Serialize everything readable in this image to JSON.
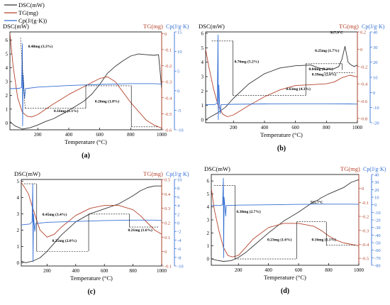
{
  "legend": [
    {
      "label": "DSC(mW)",
      "color": "#333333"
    },
    {
      "label": "TG(mg)",
      "color": "#b5432c"
    },
    {
      "label": "Cp(J/(g·K))",
      "color": "#3570d4"
    }
  ],
  "colors": {
    "dsc": "#333333",
    "tg": "#b5432c",
    "cp": "#3570d4"
  },
  "chart_data": [
    {
      "type": "line",
      "panel_label": "(a)",
      "xlabel": "Temperature (°C)",
      "xlim": [
        20,
        1000
      ],
      "xticks": [
        200,
        400,
        600,
        800,
        1000
      ],
      "axes": {
        "dsc": {
          "title": "DSC(mW)",
          "lim": [
            -0.5,
            6.6
          ],
          "ticks": [
            0,
            1,
            2,
            3,
            4,
            5,
            6
          ]
        },
        "tg": {
          "title": "TG(mg)",
          "lim": [
            -0.6,
            0.01
          ],
          "ticks": [
            -0.6,
            -0.5,
            -0.4,
            -0.3,
            -0.2,
            -0.1,
            0.0
          ]
        },
        "cp": {
          "title": "Cp(J/g·K)",
          "lim": [
            -10,
            15
          ],
          "ticks": [
            -10,
            -5,
            0,
            5,
            10,
            15
          ]
        }
      },
      "series": [
        {
          "axis": "dsc",
          "x": [
            20,
            50,
            100,
            150,
            200,
            250,
            300,
            400,
            500,
            550,
            600,
            650,
            700,
            750,
            800,
            850,
            900,
            950,
            980,
            1000
          ],
          "y": [
            0.1,
            -0.2,
            -0.45,
            -0.35,
            -0.15,
            0.1,
            0.3,
            0.9,
            1.6,
            2.1,
            2.8,
            3.6,
            4.1,
            4.5,
            4.85,
            5.0,
            4.95,
            4.9,
            4.95,
            2.5
          ]
        },
        {
          "axis": "tg",
          "x": [
            20,
            40,
            70,
            100,
            130,
            160,
            200,
            300,
            400,
            500,
            600,
            650,
            700,
            800,
            900,
            950,
            1000
          ],
          "y": [
            0.0,
            -0.2,
            -0.4,
            -0.49,
            -0.515,
            -0.52,
            -0.505,
            -0.44,
            -0.38,
            -0.33,
            -0.28,
            -0.27,
            -0.3,
            -0.43,
            -0.54,
            -0.57,
            -0.59
          ]
        },
        {
          "axis": "cp",
          "x": [
            20,
            80,
            95,
            100,
            102,
            105,
            110,
            115,
            120,
            200,
            400,
            600,
            800,
            950,
            1000
          ],
          "y": [
            0.5,
            0.6,
            0.8,
            12,
            -9,
            4,
            0.5,
            -2,
            0.5,
            0.9,
            1.3,
            1.6,
            1.8,
            1.8,
            1.7
          ]
        }
      ],
      "annotations": [
        "0.48mg (3.3%)",
        "0.16mg (1.1%)",
        "0.26mg (1.8%)"
      ]
    },
    {
      "type": "line",
      "panel_label": "(b)",
      "xlabel": "Temperature (°C)",
      "xlim": [
        20,
        1000
      ],
      "xticks": [
        200,
        400,
        600,
        800,
        1000
      ],
      "axes": {
        "dsc": {
          "title": "DSC(mW)",
          "lim": [
            -0.2,
            6.1
          ],
          "ticks": [
            0,
            1,
            2,
            3,
            4,
            5,
            6
          ]
        },
        "tg": {
          "title": "TG(mg)",
          "lim": [
            -0.85,
            0.2
          ],
          "ticks": [
            -0.8,
            -0.6,
            -0.4,
            -0.2,
            0.0,
            0.2
          ]
        },
        "cp": {
          "title": "Cp(J/g·K)",
          "lim": [
            -20,
            40
          ],
          "ticks": [
            -20,
            -10,
            0,
            10,
            20,
            30,
            40
          ]
        }
      },
      "series": [
        {
          "axis": "dsc",
          "x": [
            20,
            50,
            100,
            150,
            200,
            300,
            400,
            500,
            600,
            700,
            750,
            800,
            850,
            880,
            900,
            920,
            940,
            960,
            980,
            1000
          ],
          "y": [
            0.0,
            0.2,
            0.5,
            0.9,
            1.5,
            2.5,
            3.2,
            3.6,
            3.75,
            3.8,
            3.6,
            3.5,
            3.55,
            3.7,
            4.2,
            5.1,
            4.0,
            3.8,
            3.7,
            3.8
          ]
        },
        {
          "axis": "tg",
          "x": [
            20,
            40,
            70,
            100,
            130,
            160,
            200,
            300,
            400,
            500,
            600,
            700,
            800,
            850,
            900,
            950,
            1000
          ],
          "y": [
            0.0,
            -0.2,
            -0.45,
            -0.65,
            -0.75,
            -0.78,
            -0.76,
            -0.65,
            -0.55,
            -0.47,
            -0.42,
            -0.41,
            -0.4,
            -0.38,
            -0.33,
            -0.3,
            -0.32
          ]
        },
        {
          "axis": "cp",
          "x": [
            20,
            80,
            95,
            100,
            102,
            105,
            110,
            115,
            120,
            200,
            400,
            600,
            800,
            950,
            1000
          ],
          "y": [
            -8,
            -8,
            -7,
            38,
            -18,
            5,
            -8,
            -14,
            -8,
            -7.8,
            -7.6,
            -7.5,
            -7.5,
            -7.6,
            -7.7
          ]
        }
      ],
      "annotations": [
        "0.76mg (5.2%)",
        "0.63mg (4.3%)",
        "0.25mg (1.7%)",
        "0.04mg (0.2%)",
        "0.39mg (2.6%)",
        "917.9°C"
      ]
    },
    {
      "type": "line",
      "panel_label": "(c)",
      "xlabel": "Temperature (°C)",
      "xlim": [
        20,
        1000
      ],
      "xticks": [
        200,
        400,
        600,
        800,
        1000
      ],
      "axes": {
        "dsc": {
          "title": "DSC(mW)",
          "lim": [
            -0.2,
            5.1
          ],
          "ticks": [
            0,
            1,
            2,
            3,
            4,
            5
          ]
        },
        "tg": {
          "title": "TG(mg)",
          "lim": [
            -0.1,
            0.5
          ],
          "ticks": [
            -0.1,
            0.0,
            0.1,
            0.2,
            0.3,
            0.4,
            0.5
          ]
        },
        "cp": {
          "title": "Cp(J/g·K)",
          "lim": [
            -10,
            10
          ],
          "ticks": [
            -10,
            -8,
            -6,
            -4,
            -2,
            0,
            2,
            4,
            6,
            8,
            10
          ]
        }
      },
      "series": [
        {
          "axis": "dsc",
          "x": [
            20,
            50,
            100,
            150,
            200,
            250,
            300,
            400,
            500,
            600,
            700,
            800,
            850,
            900,
            950,
            1000
          ],
          "y": [
            0.1,
            0.0,
            0.1,
            0.3,
            0.7,
            1.2,
            1.7,
            2.5,
            3.0,
            3.3,
            3.6,
            4.1,
            4.4,
            4.6,
            4.7,
            4.7
          ]
        },
        {
          "axis": "tg",
          "x": [
            20,
            40,
            70,
            100,
            150,
            200,
            250,
            300,
            400,
            500,
            600,
            700,
            800,
            850,
            900,
            950,
            1000
          ],
          "y": [
            0.48,
            0.45,
            0.4,
            0.3,
            0.15,
            0.1,
            0.12,
            0.17,
            0.25,
            0.3,
            0.32,
            0.32,
            0.29,
            0.25,
            0.2,
            0.15,
            0.12
          ]
        },
        {
          "axis": "cp",
          "x": [
            20,
            80,
            95,
            100,
            102,
            105,
            110,
            115,
            120,
            200,
            400,
            600,
            800,
            950,
            1000
          ],
          "y": [
            -0.5,
            -0.3,
            0.2,
            9,
            -9,
            2,
            -0.3,
            -2,
            -0.2,
            0.1,
            0.3,
            0.5,
            0.6,
            0.6,
            0.5
          ]
        }
      ],
      "annotations": [
        "0.45mg (3.4%)",
        "0.25mg (2.0%)",
        "0.21mg (1.6%)"
      ]
    },
    {
      "type": "line",
      "panel_label": "(d)",
      "xlabel": "Temperature (°C)",
      "xlim": [
        20,
        1000
      ],
      "xticks": [
        200,
        400,
        600,
        800,
        1000
      ],
      "axes": {
        "dsc": {
          "title": "DSC(mW)",
          "lim": [
            -0.5,
            6.5
          ],
          "ticks": [
            0,
            1,
            2,
            3,
            4,
            5,
            6
          ]
        },
        "tg": {
          "title": "TG(mg)",
          "lim": [
            -0.55,
            0.1
          ],
          "ticks": [
            -0.5,
            -0.4,
            -0.3,
            -0.2,
            -0.1,
            0.0
          ]
        },
        "cp": {
          "title": "Cp(J/g·K)",
          "lim": [
            -80,
            40
          ],
          "ticks": [
            -80,
            -70,
            -60,
            -50,
            -40,
            -30,
            -20,
            -10,
            0,
            10,
            20,
            30,
            40
          ]
        }
      },
      "series": [
        {
          "axis": "dsc",
          "x": [
            20,
            50,
            100,
            150,
            200,
            250,
            300,
            400,
            500,
            600,
            700,
            725,
            750,
            800,
            900,
            950,
            1000
          ],
          "y": [
            0.0,
            -0.1,
            -0.2,
            -0.15,
            0.1,
            0.5,
            1.0,
            2.0,
            2.9,
            3.6,
            4.4,
            4.5,
            4.7,
            5.0,
            5.5,
            5.9,
            6.1
          ]
        },
        {
          "axis": "tg",
          "x": [
            20,
            40,
            70,
            100,
            130,
            160,
            200,
            250,
            300,
            400,
            500,
            600,
            700,
            750,
            800,
            850,
            900,
            950,
            1000
          ],
          "y": [
            0.0,
            -0.15,
            -0.3,
            -0.42,
            -0.48,
            -0.49,
            -0.48,
            -0.42,
            -0.36,
            -0.28,
            -0.25,
            -0.25,
            -0.27,
            -0.3,
            -0.34,
            -0.37,
            -0.39,
            -0.4,
            -0.41
          ]
        },
        {
          "axis": "cp",
          "x": [
            20,
            80,
            95,
            100,
            102,
            105,
            110,
            115,
            120,
            200,
            400,
            600,
            800,
            950,
            1000
          ],
          "y": [
            -1,
            -1,
            0,
            35,
            -70,
            10,
            -1,
            -15,
            -1,
            -0.5,
            0,
            0.5,
            0.8,
            0.8,
            0.5
          ]
        }
      ],
      "annotations": [
        "0.38mg (2.7%)",
        "0.23mg (1.6%)",
        "0.16mg (1.1%)",
        "725.7°C"
      ]
    }
  ]
}
